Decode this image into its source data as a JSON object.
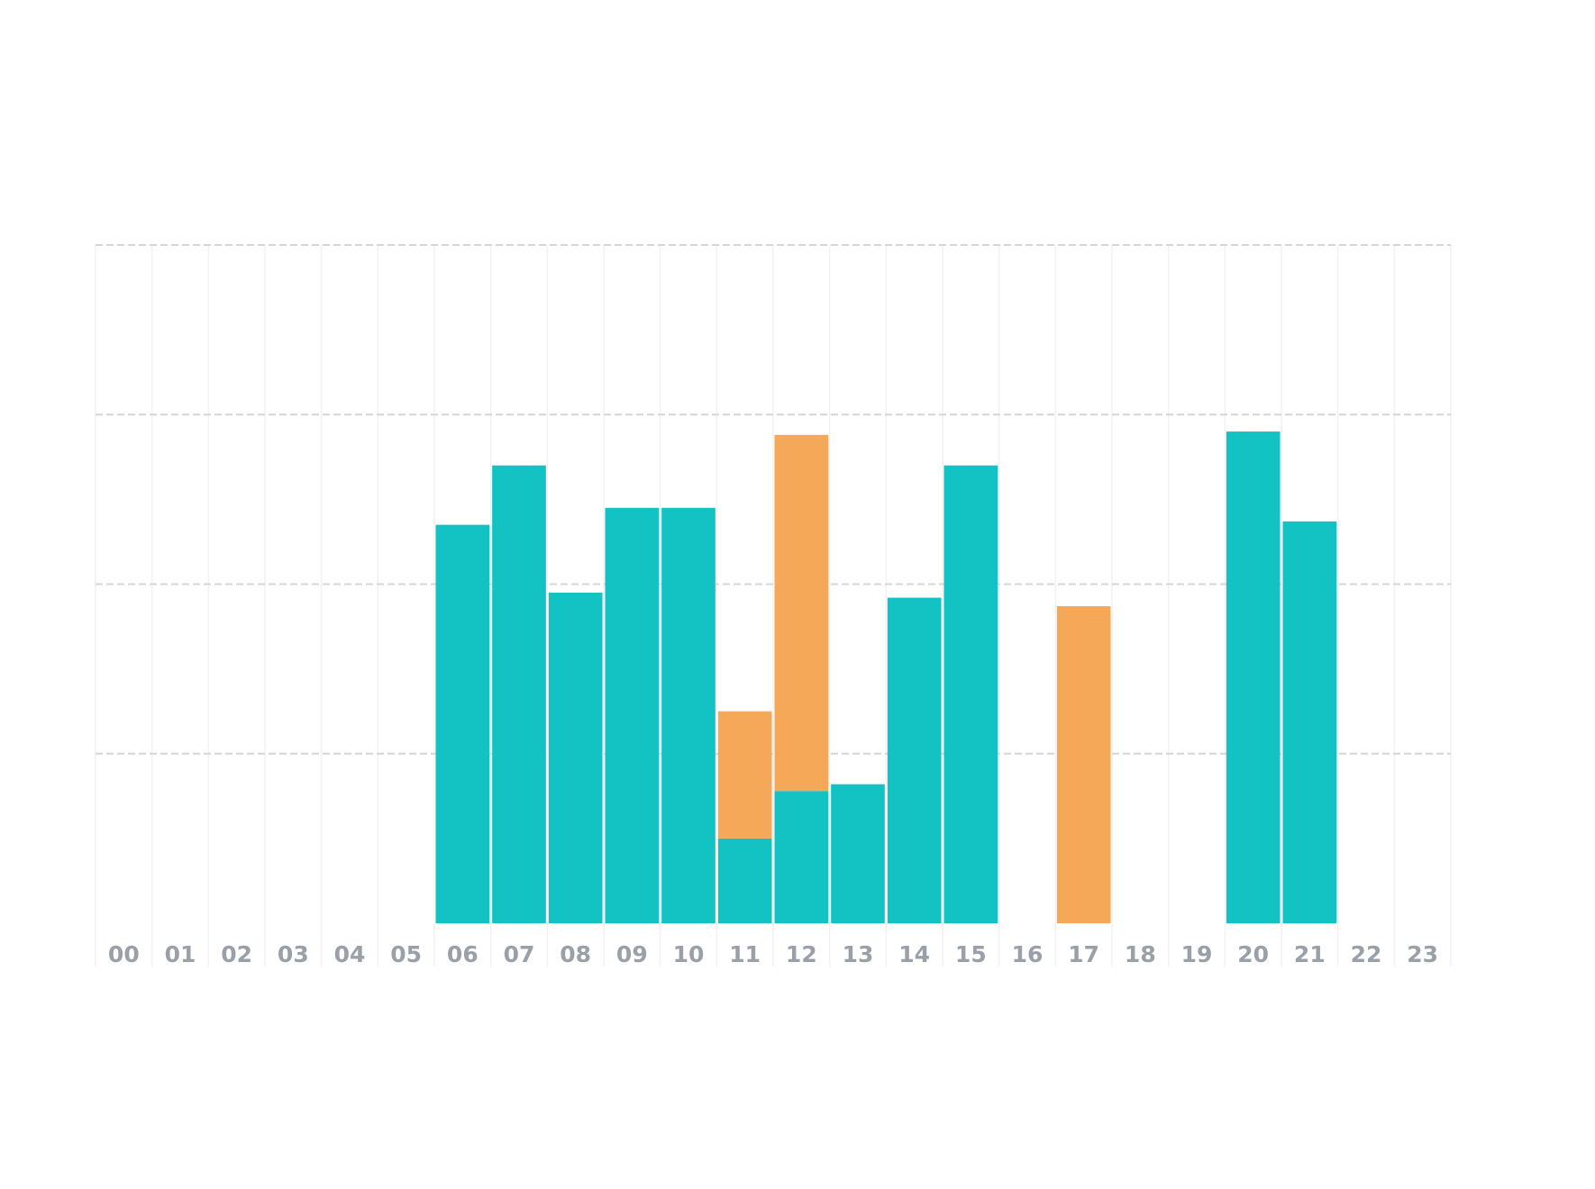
{
  "chart_data": {
    "type": "stacked_bar",
    "categories": [
      "00",
      "01",
      "02",
      "03",
      "04",
      "05",
      "06",
      "07",
      "08",
      "09",
      "10",
      "11",
      "12",
      "13",
      "14",
      "15",
      "16",
      "17",
      "18",
      "19",
      "20",
      "21",
      "22",
      "23"
    ],
    "series": [
      {
        "color": "#13c2c2",
        "values": [
          0,
          0,
          0,
          0,
          0,
          0,
          2.35,
          2.7,
          1.95,
          2.45,
          2.45,
          0.5,
          0.78,
          0.82,
          1.92,
          2.7,
          0,
          0,
          0,
          0,
          2.9,
          2.37,
          0,
          0
        ]
      },
      {
        "color": "#f5a858",
        "values": [
          0,
          0,
          0,
          0,
          0,
          0,
          0,
          0,
          0,
          0,
          0,
          0.75,
          2.1,
          0,
          0,
          0,
          0,
          1.87,
          0,
          0,
          0,
          0,
          0,
          0
        ]
      }
    ],
    "ylim": [
      0,
      4
    ],
    "yticks": [
      1,
      2,
      3,
      4
    ],
    "grid": true
  }
}
